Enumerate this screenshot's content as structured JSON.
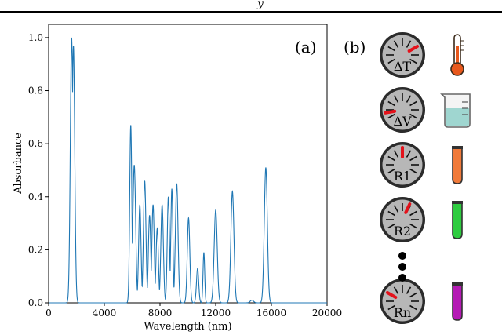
{
  "header_fragment": "y",
  "panel_a_label": "(a)",
  "panel_b_label": "(b)",
  "chart_data": {
    "type": "line",
    "title": "",
    "xlabel": "Wavelength (nm)",
    "ylabel": "Absorbance",
    "xlim": [
      0,
      20000
    ],
    "ylim": [
      0,
      1.05
    ],
    "xticks": [
      0,
      4000,
      8000,
      12000,
      16000,
      20000
    ],
    "yticks": [
      0.0,
      0.2,
      0.4,
      0.6,
      0.8,
      1.0
    ],
    "xtick_labels": [
      "0",
      "4000",
      "8000",
      "12000",
      "16000",
      "20000"
    ],
    "ytick_labels": [
      "0.0",
      "0.2",
      "0.4",
      "0.6",
      "0.8",
      "1.0"
    ],
    "grid": false,
    "line_color": "#1f77b4",
    "series": [
      {
        "peaks": [
          {
            "x": 1650,
            "y": 1.0,
            "width": 95
          },
          {
            "x": 1780,
            "y": 0.97,
            "width": 95
          },
          {
            "x": 5900,
            "y": 0.67,
            "width": 75
          },
          {
            "x": 6150,
            "y": 0.52,
            "width": 100
          },
          {
            "x": 6550,
            "y": 0.37,
            "width": 85
          },
          {
            "x": 6900,
            "y": 0.46,
            "width": 90
          },
          {
            "x": 7250,
            "y": 0.33,
            "width": 85
          },
          {
            "x": 7500,
            "y": 0.37,
            "width": 85
          },
          {
            "x": 7800,
            "y": 0.28,
            "width": 85
          },
          {
            "x": 8150,
            "y": 0.37,
            "width": 90
          },
          {
            "x": 8600,
            "y": 0.4,
            "width": 80
          },
          {
            "x": 8850,
            "y": 0.43,
            "width": 75
          },
          {
            "x": 9200,
            "y": 0.45,
            "width": 95
          },
          {
            "x": 10050,
            "y": 0.32,
            "width": 90
          },
          {
            "x": 10700,
            "y": 0.13,
            "width": 80
          },
          {
            "x": 11150,
            "y": 0.19,
            "width": 60
          },
          {
            "x": 12000,
            "y": 0.35,
            "width": 110
          },
          {
            "x": 13200,
            "y": 0.42,
            "width": 110
          },
          {
            "x": 14600,
            "y": 0.01,
            "width": 120
          },
          {
            "x": 15600,
            "y": 0.51,
            "width": 110
          }
        ]
      }
    ]
  },
  "panel_b": {
    "dials": [
      {
        "label": "ΔT",
        "needle_angle": 60
      },
      {
        "label": "ΔV",
        "needle_angle": -100
      },
      {
        "label": "R1",
        "needle_angle": 0
      },
      {
        "label": "R2",
        "needle_angle": 25
      },
      {
        "label": "Rn",
        "needle_angle": -60
      }
    ],
    "icons": [
      {
        "name": "thermometer-icon",
        "color": "#e8581c"
      },
      {
        "name": "beaker-icon",
        "color": "#9fd6d0"
      },
      {
        "name": "test-tube-orange-icon",
        "color": "#f07a3a"
      },
      {
        "name": "test-tube-green-icon",
        "color": "#2ecc40"
      },
      {
        "name": "test-tube-purple-icon",
        "color": "#b51ab5"
      }
    ],
    "needle_color": "#e4121b",
    "dial_face_color": "#b7b7b7"
  }
}
